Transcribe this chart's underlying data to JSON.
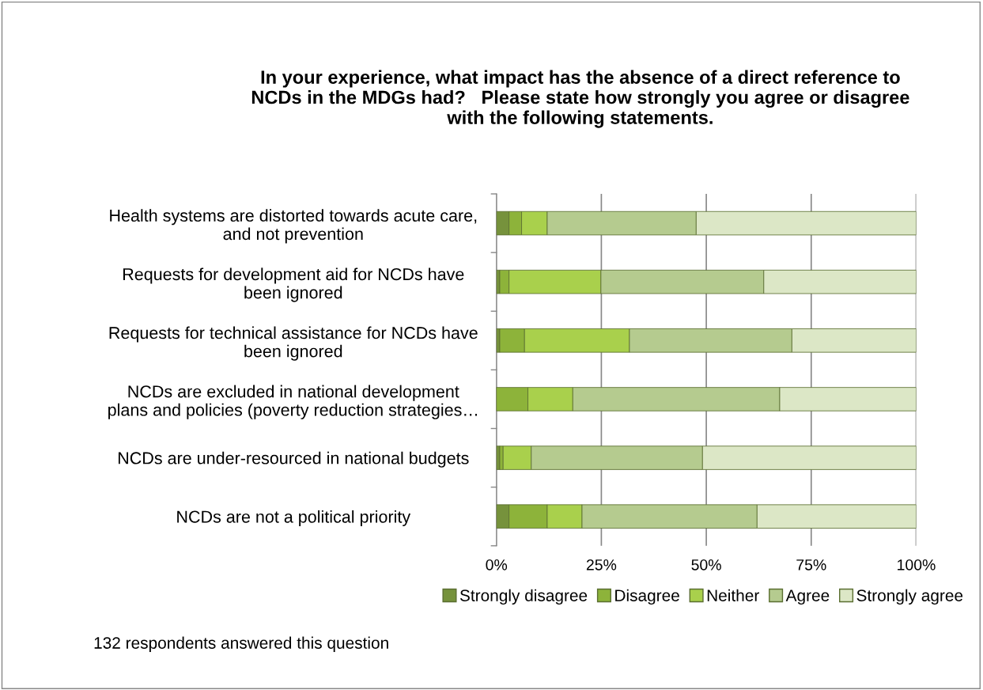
{
  "chart_data": {
    "type": "bar",
    "orientation": "horizontal",
    "stacked": true,
    "title": "In your experience, what impact has the absence of a direct reference to\nNCDs in the MDGs had?   Please state how strongly you agree or disagree\nwith the following statements.",
    "categories": [
      "Health systems are distorted towards acute care,\nand not prevention",
      "Requests for development aid for NCDs have\nbeen ignored",
      "Requests for technical assistance for NCDs have\nbeen ignored",
      "NCDs are excluded in national development\nplans and policies (poverty reduction strategies…",
      "NCDs are under-resourced in national budgets",
      "NCDs are not a political priority"
    ],
    "series": [
      {
        "name": "Strongly disagree",
        "color": "#76923c",
        "values": [
          3.0,
          0.8,
          0.8,
          0,
          0.8,
          3.0
        ]
      },
      {
        "name": "Disagree",
        "color": "#8db33a",
        "values": [
          3.0,
          2.2,
          5.9,
          7.5,
          0.8,
          9.1
        ]
      },
      {
        "name": "Neither",
        "color": "#a9d04c",
        "values": [
          6.1,
          21.9,
          25.0,
          10.7,
          6.7,
          8.3
        ]
      },
      {
        "name": "Agree",
        "color": "#b5cb8f",
        "values": [
          35.5,
          38.8,
          38.7,
          49.3,
          40.8,
          41.7
        ]
      },
      {
        "name": "Strongly agree",
        "color": "#dce7c6",
        "values": [
          52.4,
          36.3,
          29.6,
          32.5,
          50.9,
          37.9
        ]
      }
    ],
    "xlim": [
      0,
      100
    ],
    "xticks": [
      {
        "value": 0,
        "label": "0%"
      },
      {
        "value": 25,
        "label": "25%"
      },
      {
        "value": 50,
        "label": "50%"
      },
      {
        "value": 75,
        "label": "75%"
      },
      {
        "value": 100,
        "label": "100%"
      }
    ],
    "grid": "x",
    "legend": "bottom",
    "annotations": [
      "132 respondents answered this question"
    ]
  }
}
